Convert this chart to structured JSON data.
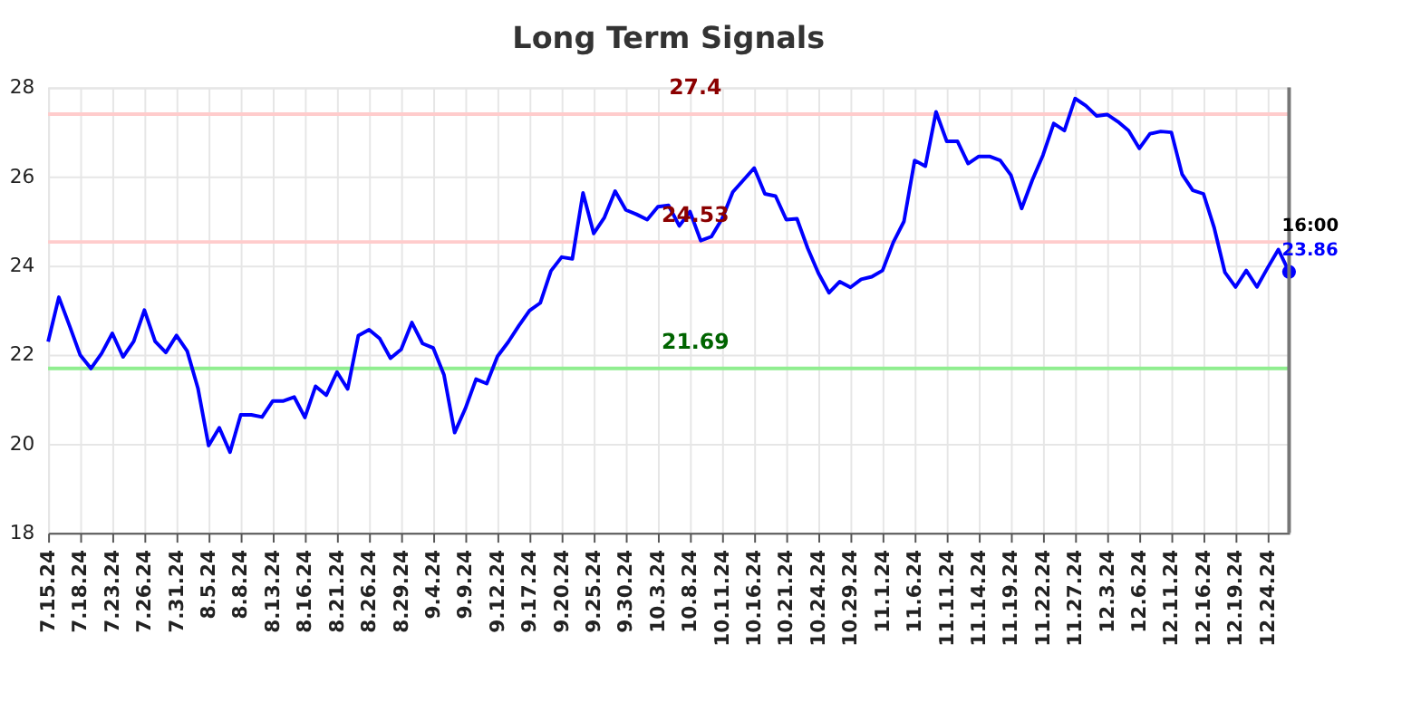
{
  "chart_data": {
    "type": "line",
    "title": "Long Term Signals",
    "categories": [
      "7.15.24",
      null,
      null,
      "7.18.24",
      null,
      null,
      "7.23.24",
      null,
      null,
      "7.26.24",
      null,
      null,
      "7.31.24",
      null,
      null,
      "8.5.24",
      null,
      null,
      "8.8.24",
      null,
      null,
      "8.13.24",
      null,
      null,
      "8.16.24",
      null,
      null,
      "8.21.24",
      null,
      null,
      "8.26.24",
      null,
      null,
      "8.29.24",
      null,
      null,
      "9.4.24",
      null,
      null,
      "9.9.24",
      null,
      null,
      "9.12.24",
      null,
      null,
      "9.17.24",
      null,
      null,
      "9.20.24",
      null,
      null,
      "9.25.24",
      null,
      null,
      "9.30.24",
      null,
      null,
      "10.3.24",
      null,
      null,
      "10.8.24",
      null,
      null,
      "10.11.24",
      null,
      null,
      "10.16.24",
      null,
      null,
      "10.21.24",
      null,
      null,
      "10.24.24",
      null,
      null,
      "10.29.24",
      null,
      null,
      "11.1.24",
      null,
      null,
      "11.6.24",
      null,
      null,
      "11.11.24",
      null,
      null,
      "11.14.24",
      null,
      null,
      "11.19.24",
      null,
      null,
      "11.22.24",
      null,
      null,
      "11.27.24",
      null,
      null,
      "12.3.24",
      null,
      null,
      "12.6.24",
      null,
      null,
      "12.11.24",
      null,
      null,
      "12.16.24",
      null,
      null,
      "12.19.24",
      null,
      null,
      "12.24.24",
      null,
      null
    ],
    "series": [
      {
        "color": "#0000ff",
        "values": [
          22.29,
          23.29,
          22.65,
          21.99,
          21.69,
          22.03,
          22.48,
          21.95,
          22.3,
          23.0,
          22.3,
          22.05,
          22.43,
          22.08,
          21.25,
          19.96,
          20.36,
          19.81,
          20.65,
          20.65,
          20.6,
          20.96,
          20.96,
          21.05,
          20.59,
          21.29,
          21.09,
          21.61,
          21.23,
          22.43,
          22.56,
          22.36,
          21.92,
          22.12,
          22.72,
          22.25,
          22.15,
          21.55,
          20.25,
          20.79,
          21.45,
          21.35,
          21.96,
          22.28,
          22.65,
          22.99,
          23.16,
          23.88,
          24.19,
          24.15,
          25.63,
          24.72,
          25.08,
          25.67,
          25.25,
          25.15,
          25.03,
          25.32,
          25.35,
          24.89,
          25.21,
          24.56,
          24.65,
          25.05,
          25.65,
          25.92,
          26.19,
          25.61,
          25.56,
          25.03,
          25.05,
          24.39,
          23.83,
          23.39,
          23.64,
          23.51,
          23.69,
          23.75,
          23.89,
          24.52,
          24.99,
          26.36,
          26.23,
          27.45,
          26.79,
          26.79,
          26.29,
          26.45,
          26.45,
          26.36,
          26.03,
          25.28,
          25.92,
          26.48,
          27.19,
          27.03,
          27.75,
          27.59,
          27.36,
          27.39,
          27.23,
          27.03,
          26.63,
          26.96,
          27.01,
          26.99,
          26.05,
          25.69,
          25.61,
          24.85,
          23.85,
          23.52,
          23.89,
          23.52,
          23.95,
          24.36,
          23.86
        ]
      },
      {
        "type": "scatter",
        "color": "#0000ff",
        "values": [
          null,
          null,
          null,
          null,
          null,
          null,
          null,
          null,
          null,
          null,
          null,
          null,
          null,
          null,
          null,
          null,
          null,
          null,
          null,
          null,
          null,
          null,
          null,
          null,
          null,
          null,
          null,
          null,
          null,
          null,
          null,
          null,
          null,
          null,
          null,
          null,
          null,
          null,
          null,
          null,
          null,
          null,
          null,
          null,
          null,
          null,
          null,
          null,
          null,
          null,
          null,
          null,
          null,
          null,
          null,
          null,
          null,
          null,
          null,
          null,
          null,
          null,
          null,
          null,
          null,
          null,
          null,
          null,
          null,
          null,
          null,
          null,
          null,
          null,
          null,
          null,
          null,
          null,
          null,
          null,
          null,
          null,
          null,
          null,
          null,
          null,
          null,
          null,
          null,
          null,
          null,
          null,
          null,
          null,
          null,
          null,
          null,
          null,
          null,
          null,
          null,
          null,
          null,
          null,
          null,
          null,
          null,
          null,
          null,
          null,
          null,
          null,
          null,
          null,
          null,
          null,
          23.86
        ]
      }
    ],
    "ylim": [
      18,
      28
    ],
    "yticks": [
      18,
      20,
      22,
      24,
      26,
      28
    ],
    "grid": true,
    "ref_lines": [
      {
        "axis": "y",
        "value": 27.4,
        "label": "27.4",
        "color": "#ffcccc"
      },
      {
        "axis": "y",
        "value": 24.53,
        "label": "24.53",
        "color": "#ffcccc"
      },
      {
        "axis": "y",
        "value": 21.69,
        "label": "21.69",
        "color": "#90ee90"
      }
    ],
    "annotations": [
      "16:00",
      "23.86"
    ]
  }
}
